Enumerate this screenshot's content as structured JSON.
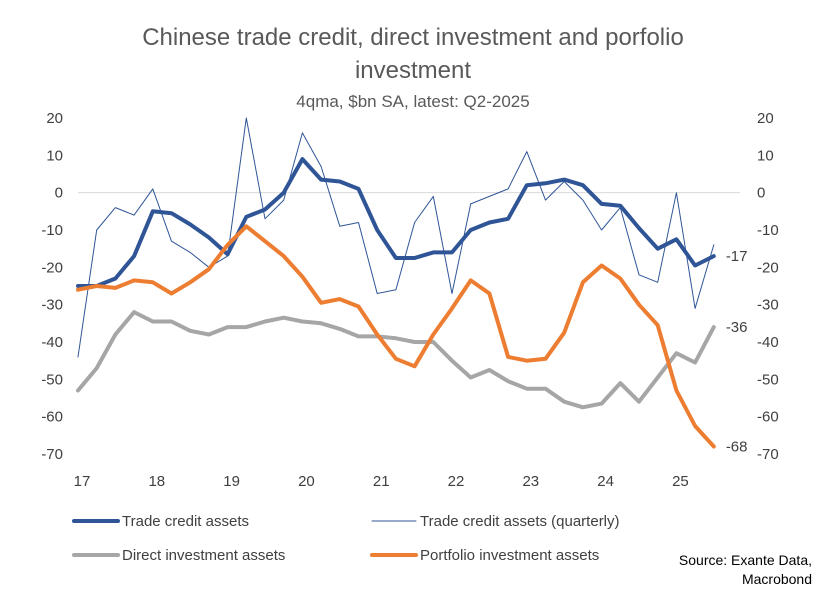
{
  "colors": {
    "trade_credit": "#2F5597",
    "trade_credit_quarterly": "#2F5597",
    "direct_investment": "#A6A6A6",
    "portfolio_investment": "#ED7D31",
    "axis": "#D9D9D9"
  },
  "source": {
    "line1": "Source: Exante Data,",
    "line2": "Macrobond"
  },
  "chart_data": {
    "type": "line",
    "title_line1": "Chinese trade credit, direct investment and porfolio",
    "title_line2": "investment",
    "subtitle": "4qma, $bn SA, latest: Q2-2025",
    "xlabel": "",
    "ylabel": "",
    "ylim": [
      -70,
      20
    ],
    "xlim": [
      2017.0,
      2025.85
    ],
    "y_ticks": [
      20,
      10,
      0,
      -10,
      -20,
      -30,
      -40,
      -50,
      -60,
      -70
    ],
    "y_tick_labels_left": [
      "20",
      "10",
      "0",
      "-10",
      "-20",
      "-30",
      "-40",
      "-50",
      "-60",
      "-70"
    ],
    "y_tick_labels_right": [
      "20",
      "10",
      "0",
      "-10",
      "-20",
      "-30",
      "-40",
      "-50",
      "-60",
      "-70"
    ],
    "x_ticks": [
      2017,
      2018,
      2019,
      2020,
      2021,
      2022,
      2023,
      2024,
      2025
    ],
    "x_tick_labels": [
      "17",
      "18",
      "19",
      "20",
      "21",
      "22",
      "23",
      "24",
      "25"
    ],
    "x": [
      2017.0,
      2017.25,
      2017.5,
      2017.75,
      2018.0,
      2018.25,
      2018.5,
      2018.75,
      2019.0,
      2019.25,
      2019.5,
      2019.75,
      2020.0,
      2020.25,
      2020.5,
      2020.75,
      2021.0,
      2021.25,
      2021.5,
      2021.75,
      2022.0,
      2022.25,
      2022.5,
      2022.75,
      2023.0,
      2023.25,
      2023.5,
      2023.75,
      2024.0,
      2024.25,
      2024.5,
      2024.75,
      2025.0,
      2025.25,
      2025.5
    ],
    "series": [
      {
        "name": "Trade credit assets (quarterly)",
        "key": "trade_credit_quarterly",
        "width": 1,
        "values": [
          -44,
          -10,
          -4,
          -6,
          1,
          -13,
          -16,
          -20,
          -17,
          20,
          -7,
          -2,
          16,
          7,
          -9,
          -8,
          -27,
          -26,
          -8,
          -1,
          -27,
          -3,
          -1,
          1,
          11,
          -2,
          3,
          -2,
          -10,
          -4,
          -22,
          -24,
          0,
          -31,
          -14
        ]
      },
      {
        "name": "Trade credit assets",
        "key": "trade_credit",
        "width": 4,
        "values": [
          -25,
          -25,
          -23,
          -17,
          -5,
          -5.5,
          -8.5,
          -12,
          -16.5,
          -6.5,
          -4.5,
          0,
          9,
          3.5,
          3,
          1,
          -10,
          -17.5,
          -17.5,
          -16,
          -16,
          -10,
          -8,
          -7,
          2,
          2.5,
          3.5,
          2,
          -3,
          -3.5,
          -9.5,
          -15,
          -12.5,
          -19.5,
          -17
        ]
      },
      {
        "name": "Direct investment assets",
        "key": "direct_investment",
        "width": 4,
        "values": [
          -53,
          -47,
          -38,
          -32,
          -34.5,
          -34.5,
          -37,
          -38,
          -36,
          -36,
          -34.5,
          -33.5,
          -34.5,
          -35,
          -36.5,
          -38.5,
          -38.5,
          -39,
          -40,
          -40,
          -45,
          -49.5,
          -47.5,
          -50.5,
          -52.5,
          -52.5,
          -56,
          -57.5,
          -56.5,
          -51,
          -56,
          -49.5,
          -43,
          -45.5,
          -36
        ]
      },
      {
        "name": "Portfolio investment assets",
        "key": "portfolio_investment",
        "width": 4,
        "values": [
          -26,
          -25,
          -25.5,
          -23.5,
          -24,
          -27,
          -24,
          -20.5,
          -14,
          -9,
          -13,
          -17,
          -22.5,
          -29.5,
          -28.5,
          -30.5,
          -38,
          -44.5,
          -46.5,
          -38,
          -31,
          -23.5,
          -27,
          -44,
          -45,
          -44.5,
          -37.5,
          -24,
          -19.5,
          -23,
          -30,
          -35.5,
          -53,
          -62.5,
          -68
        ]
      }
    ],
    "end_labels": [
      {
        "series": "Trade credit assets",
        "text": "-17"
      },
      {
        "series": "Direct investment assets",
        "text": "-36"
      },
      {
        "series": "Portfolio investment assets",
        "text": "-68"
      }
    ],
    "legend": [
      {
        "name": "Trade credit assets",
        "key": "trade_credit",
        "width": 4
      },
      {
        "name": "Trade credit assets (quarterly)",
        "key": "trade_credit_quarterly",
        "width": 1
      },
      {
        "name": "Direct investment assets",
        "key": "direct_investment",
        "width": 4
      },
      {
        "name": "Portfolio investment assets",
        "key": "portfolio_investment",
        "width": 4
      }
    ],
    "legend_position": "bottom"
  }
}
